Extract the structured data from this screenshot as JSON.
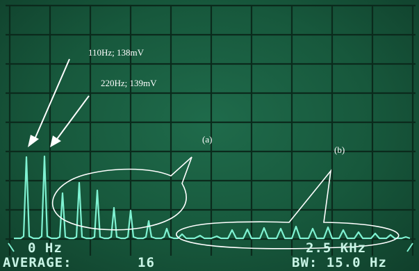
{
  "annotations": {
    "peak1_label": "110Hz; 138mV",
    "peak2_label": "220Hz; 139mV",
    "region_a_label": "(a)",
    "region_b_label": "(b)"
  },
  "readouts": {
    "start_freq": "0 Hz",
    "stop_freq": "2.5 KHz",
    "average_label": "AVERAGE:",
    "average_value": "16",
    "bandwidth": "BW: 15.0 Hz"
  },
  "colors": {
    "screen": "#17583c",
    "grid": "#0b2a1c",
    "trace": "#7ff2d2",
    "annotation": "#ffffff"
  },
  "chart_data": {
    "type": "line",
    "series_description": "harmonic spectrum peaks",
    "peaks": [
      {
        "freq_hz": 110,
        "amplitude_mv": 138
      },
      {
        "freq_hz": 220,
        "amplitude_mv": 139
      }
    ]
  }
}
